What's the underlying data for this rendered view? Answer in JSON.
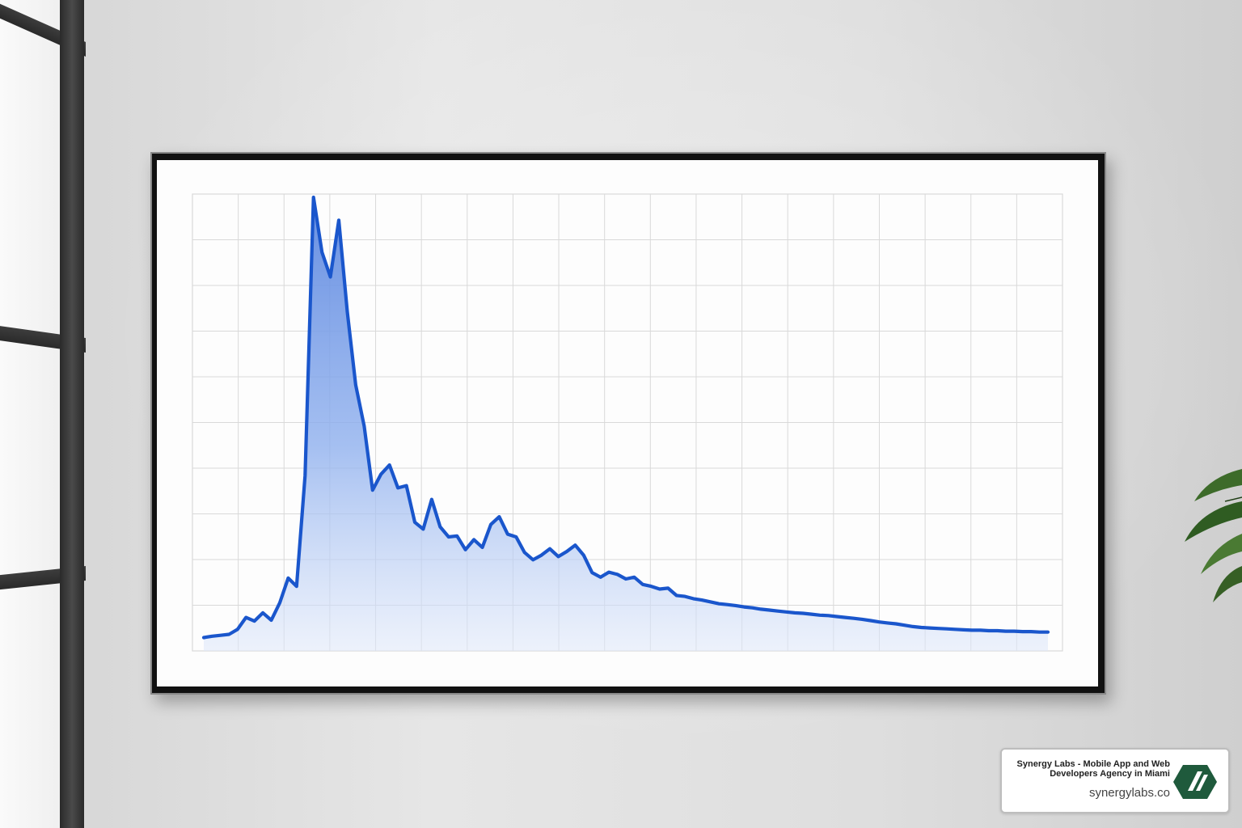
{
  "badge": {
    "title": "Synergy Labs - Mobile App and Web Developers Agency in Miami",
    "url": "synergylabs.co",
    "logo_icon": "synergy-labs-logo-icon",
    "logo_color": "#1f5a3c"
  },
  "colors": {
    "line": "#1a56cc",
    "fill_top": "#6f97e6",
    "grid": "#d9d9d9",
    "frame": "#111111"
  },
  "chart_data": {
    "type": "area",
    "title": "",
    "xlabel": "",
    "ylabel": "",
    "grid": true,
    "ylim": [
      0,
      100
    ],
    "x": [
      0,
      1,
      2,
      3,
      4,
      5,
      6,
      7,
      8,
      9,
      10,
      11,
      12,
      13,
      14,
      15,
      16,
      17,
      18,
      19,
      20,
      21,
      22,
      23,
      24,
      25,
      26,
      27,
      28,
      29,
      30,
      31,
      32,
      33,
      34,
      35,
      36,
      37,
      38,
      39,
      40,
      41,
      42,
      43,
      44,
      45,
      46,
      47,
      48,
      49,
      50,
      51,
      52,
      53,
      54,
      55,
      56,
      57,
      58,
      59,
      60,
      61,
      62,
      63,
      64,
      65,
      66,
      67,
      68,
      69,
      70,
      71,
      72,
      73,
      74,
      75,
      76,
      77,
      78,
      79,
      80,
      81,
      82,
      83,
      84,
      85,
      86,
      87,
      88,
      89,
      90,
      91,
      92,
      93,
      94,
      95,
      96,
      97,
      98,
      99,
      100
    ],
    "series": [
      {
        "values": [
          3.8,
          4.1,
          4.3,
          4.5,
          5.6,
          8.2,
          7.4,
          9.2,
          7.6,
          11.4,
          16.8,
          15.0,
          39.2,
          100,
          88.0,
          82.6,
          95.0,
          75.0,
          59.0,
          50.0,
          36.0,
          39.5,
          41.5,
          36.5,
          37.0,
          29.0,
          27.5,
          34.0,
          28.0,
          25.8,
          26.0,
          23.0,
          25.2,
          23.5,
          28.5,
          30.2,
          26.4,
          25.8,
          22.4,
          20.8,
          21.8,
          23.2,
          21.5,
          22.6,
          24.0,
          21.8,
          18.0,
          17.0,
          18.1,
          17.6,
          16.6,
          17.0,
          15.4,
          15.0,
          14.4,
          14.6,
          13.0,
          12.8,
          12.3,
          12.0,
          11.6,
          11.2,
          11.0,
          10.8,
          10.5,
          10.3,
          10.0,
          9.8,
          9.6,
          9.4,
          9.2,
          9.1,
          8.9,
          8.7,
          8.6,
          8.4,
          8.2,
          8.0,
          7.8,
          7.5,
          7.2,
          7.0,
          6.8,
          6.5,
          6.2,
          6.0,
          5.9,
          5.8,
          5.7,
          5.6,
          5.5,
          5.4,
          5.4,
          5.3,
          5.3,
          5.2,
          5.2,
          5.1,
          5.1,
          5.0,
          5.0
        ]
      }
    ]
  }
}
